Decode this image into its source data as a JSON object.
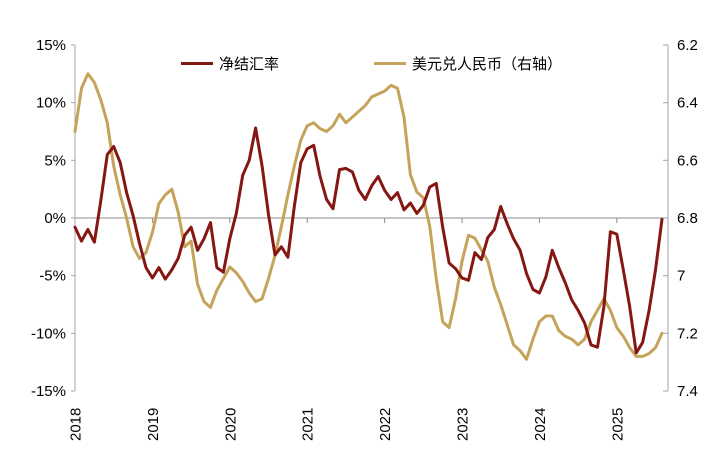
{
  "chart": {
    "title": "",
    "background": "#ffffff",
    "zero_line_color": "#8c8c8c",
    "axis_line_color": "#a6a6a6",
    "text_color": "#000000"
  },
  "chart_data": {
    "type": "line",
    "x_unit": "month",
    "x_start": "2018-01",
    "x_end": "2025-08",
    "x_tick_labels": [
      "2018",
      "2019",
      "2020",
      "2021",
      "2022",
      "2023",
      "2024",
      "2025"
    ],
    "left_axis": {
      "tick_labels": [
        "15%",
        "10%",
        "5%",
        "0%",
        "-5%",
        "-10%",
        "-15%"
      ],
      "tick_values": [
        15,
        10,
        5,
        0,
        -5,
        -10,
        -15
      ],
      "min": -15,
      "max": 15
    },
    "right_axis": {
      "tick_labels": [
        "6.2",
        "6.4",
        "6.6",
        "6.8",
        "7",
        "7.2",
        "7.4"
      ],
      "tick_values": [
        6.2,
        6.4,
        6.6,
        6.8,
        7.0,
        7.2,
        7.4
      ],
      "min": 6.2,
      "max": 7.4,
      "inverted": true
    },
    "zero_line": {
      "left_value": 0,
      "right_value": 6.8
    },
    "grid": "single-horizontal-zero-line",
    "legend_position": "top-center",
    "series": [
      {
        "key": "net_settlement_rate",
        "name": "净结汇率",
        "axis": "left",
        "unit": "%",
        "color": "#851713",
        "values": [
          -0.8,
          -2.0,
          -1.0,
          -2.1,
          1.5,
          5.5,
          6.2,
          4.8,
          2.2,
          0.2,
          -2.2,
          -4.3,
          -5.2,
          -4.3,
          -5.3,
          -4.5,
          -3.5,
          -1.5,
          -0.8,
          -2.8,
          -1.8,
          -0.4,
          -4.3,
          -4.7,
          -1.8,
          0.4,
          3.7,
          5.0,
          7.8,
          4.5,
          0.3,
          -3.2,
          -2.5,
          -3.4,
          1.0,
          4.8,
          6.0,
          6.3,
          3.6,
          1.6,
          0.8,
          4.2,
          4.3,
          4.0,
          2.4,
          1.6,
          2.8,
          3.6,
          2.4,
          1.6,
          2.2,
          0.7,
          1.3,
          0.4,
          1.1,
          2.7,
          3.0,
          -0.8,
          -3.9,
          -4.4,
          -5.2,
          -5.4,
          -3.0,
          -3.6,
          -1.7,
          -1.0,
          1.0,
          -0.5,
          -1.8,
          -2.8,
          -4.8,
          -6.2,
          -6.5,
          -5.1,
          -2.8,
          -4.3,
          -5.6,
          -7.1,
          -8.0,
          -9.1,
          -11.0,
          -11.2,
          -7.7,
          -1.2,
          -1.4,
          -4.5,
          -7.7,
          -11.7,
          -10.8,
          -8.0,
          -4.5,
          -0.1
        ]
      },
      {
        "key": "usd_cny",
        "name": "美元兑人民币（右轴）",
        "axis": "right",
        "unit": "",
        "color": "#c6a35a",
        "values": [
          6.5,
          6.35,
          6.3,
          6.33,
          6.39,
          6.47,
          6.62,
          6.72,
          6.8,
          6.9,
          6.94,
          6.92,
          6.85,
          6.75,
          6.72,
          6.7,
          6.78,
          6.9,
          6.88,
          7.03,
          7.09,
          7.11,
          7.05,
          7.01,
          6.97,
          6.99,
          7.02,
          7.06,
          7.09,
          7.08,
          7.01,
          6.93,
          6.83,
          6.72,
          6.62,
          6.53,
          6.48,
          6.47,
          6.49,
          6.5,
          6.48,
          6.44,
          6.47,
          6.45,
          6.43,
          6.41,
          6.38,
          6.37,
          6.36,
          6.34,
          6.35,
          6.45,
          6.65,
          6.71,
          6.73,
          6.83,
          7.01,
          7.16,
          7.18,
          7.08,
          6.95,
          6.86,
          6.87,
          6.91,
          6.95,
          7.04,
          7.1,
          7.17,
          7.24,
          7.26,
          7.29,
          7.22,
          7.16,
          7.14,
          7.14,
          7.19,
          7.21,
          7.22,
          7.24,
          7.22,
          7.16,
          7.12,
          7.08,
          7.12,
          7.18,
          7.21,
          7.25,
          7.28,
          7.28,
          7.27,
          7.25,
          7.2
        ]
      }
    ]
  }
}
